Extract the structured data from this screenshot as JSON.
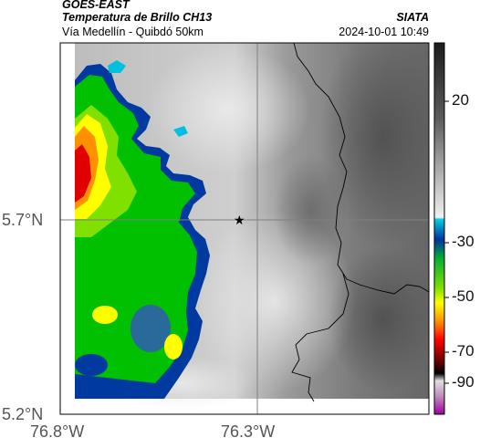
{
  "header": {
    "satellite": "GOES-EAST",
    "product": "Temperatura de Brillo CH13",
    "region": "Vía Medellín - Quibdó 50km",
    "org": "SIATA",
    "datetime": "2024-10-01 10:49"
  },
  "map": {
    "lat_ticks": [
      "5.7°N",
      "5.2°N"
    ],
    "lon_ticks": [
      "76.8°W",
      "76.3°W"
    ],
    "marker": "star-marker"
  },
  "colorbar": {
    "ticks": [
      "20",
      "-30",
      "-50",
      "-70",
      "-90"
    ],
    "colors": [
      "#1c1c1c",
      "#9a9a9a",
      "#e6e6e6",
      "#009fbf",
      "#003aa0",
      "#00c000",
      "#ffff00",
      "#ff8000",
      "#ff0000",
      "#6a0000",
      "#000000",
      "#bfbfbf",
      "#c040c0"
    ]
  }
}
